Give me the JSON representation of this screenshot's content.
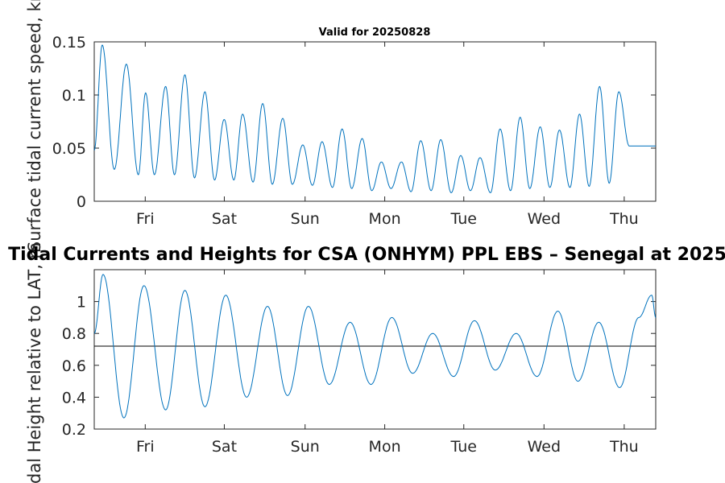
{
  "chart_data": [
    {
      "type": "line",
      "title": "Valid for 20250828",
      "ylabel": "Surface tidal current speed, kn",
      "ylim": [
        0,
        0.15
      ],
      "yticks": [
        0,
        0.05,
        0.1,
        0.15
      ],
      "ytick_labels": [
        "0",
        "0.05",
        "0.1",
        "0.15"
      ],
      "xticks": [
        "Fri",
        "Sat",
        "Sun",
        "Mon",
        "Tue",
        "Wed",
        "Thu"
      ],
      "xlim_days": [
        0,
        7.0
      ],
      "series_color": "#0072bd",
      "series": [
        {
          "x_days": [
            0.0,
            0.1,
            0.25,
            0.4,
            0.55,
            0.64,
            0.75,
            0.89,
            1.0,
            1.13,
            1.25,
            1.38,
            1.5,
            1.62,
            1.74,
            1.85,
            1.98,
            2.1,
            2.22,
            2.35,
            2.47,
            2.6,
            2.72,
            2.84,
            2.97,
            3.09,
            3.21,
            3.34,
            3.46,
            3.58,
            3.7,
            3.83,
            3.95,
            4.07,
            4.2,
            4.32,
            4.45,
            4.57,
            4.69,
            4.81,
            4.94,
            5.06,
            5.19,
            5.31,
            5.43,
            5.56,
            5.68,
            5.8,
            5.93,
            6.05,
            6.17,
            6.3,
            6.42,
            6.54,
            6.67,
            6.79,
            6.91,
            7.0
          ],
          "y": [
            0.048,
            0.147,
            0.03,
            0.129,
            0.025,
            0.102,
            0.025,
            0.108,
            0.025,
            0.119,
            0.022,
            0.103,
            0.02,
            0.077,
            0.02,
            0.082,
            0.018,
            0.092,
            0.016,
            0.078,
            0.016,
            0.053,
            0.015,
            0.056,
            0.013,
            0.068,
            0.012,
            0.059,
            0.01,
            0.037,
            0.012,
            0.037,
            0.009,
            0.057,
            0.01,
            0.058,
            0.008,
            0.043,
            0.01,
            0.041,
            0.008,
            0.068,
            0.01,
            0.079,
            0.012,
            0.07,
            0.013,
            0.067,
            0.013,
            0.082,
            0.014,
            0.108,
            0.017,
            0.103,
            0.052,
            0.052,
            0.052,
            0.052
          ]
        }
      ]
    },
    {
      "type": "line",
      "title": "Tidal Currents and Heights for CSA (ONHYM) PPL EBS  – Senegal at 2025",
      "ylabel": "Tidal Height relative to LAT, m",
      "ylim": [
        0.2,
        1.2
      ],
      "yticks": [
        0.2,
        0.4,
        0.6,
        0.8,
        1.0
      ],
      "ytick_labels": [
        "0.2",
        "0.4",
        "0.6",
        "0.8",
        "1"
      ],
      "xticks": [
        "Fri",
        "Sat",
        "Sun",
        "Mon",
        "Tue",
        "Wed",
        "Thu"
      ],
      "xlim_days": [
        0,
        7.0
      ],
      "series_color": "#0072bd",
      "reference_line": 0.72,
      "reference_color": "#000000",
      "series": [
        {
          "x_days": [
            0.0,
            0.11,
            0.37,
            0.62,
            0.89,
            1.13,
            1.38,
            1.64,
            1.9,
            2.16,
            2.41,
            2.67,
            2.93,
            3.19,
            3.45,
            3.71,
            3.97,
            4.22,
            4.48,
            4.74,
            5.0,
            5.26,
            5.52,
            5.78,
            6.03,
            6.29,
            6.55,
            6.79,
            6.95,
            7.0
          ],
          "y": [
            0.8,
            1.17,
            0.27,
            1.1,
            0.32,
            1.07,
            0.34,
            1.04,
            0.4,
            0.97,
            0.41,
            0.97,
            0.48,
            0.87,
            0.48,
            0.9,
            0.55,
            0.8,
            0.53,
            0.88,
            0.57,
            0.8,
            0.53,
            0.94,
            0.5,
            0.87,
            0.46,
            0.9,
            1.04,
            0.9
          ]
        }
      ]
    }
  ]
}
